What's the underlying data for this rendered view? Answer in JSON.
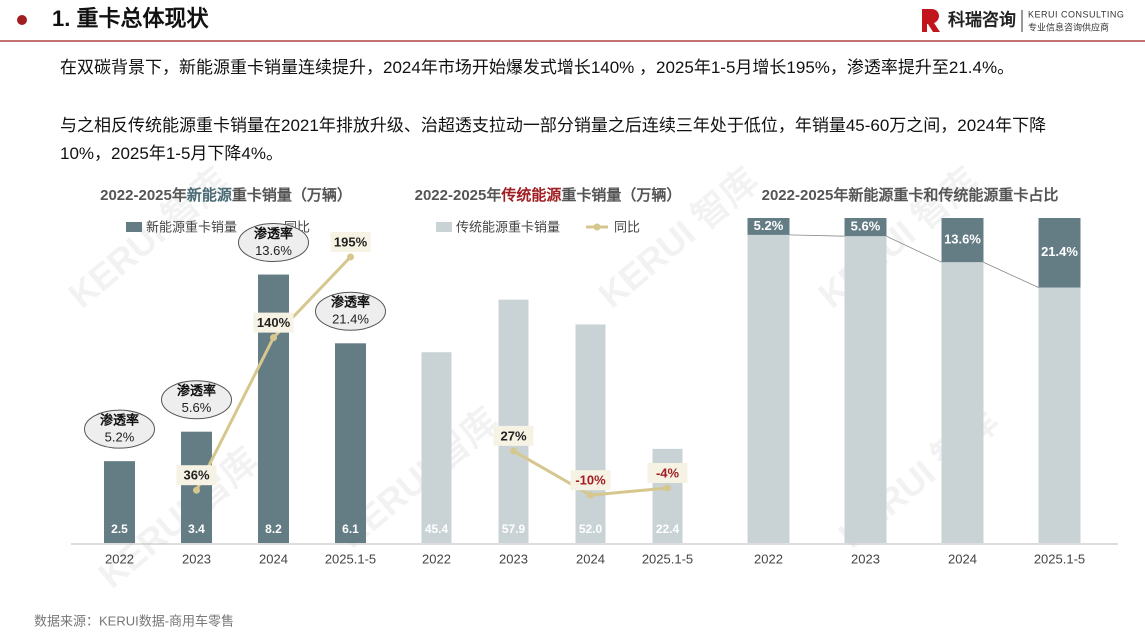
{
  "header": {
    "title": "1. 重卡总体现状",
    "brand": "科瑞咨询",
    "brand_en": "KERUI CONSULTING",
    "brand_sub": "专业信息咨询供应商"
  },
  "paragraphs": [
    "在双碳背景下，新能源重卡销量连续提升，2024年市场开始爆发式增长140% ，2025年1-5月增长195%，渗透率提升至21.4%。",
    "与之相反传统能源重卡销量在2021年排放升级、治超透支拉动一部分销量之后连续三年处于低位，年销量45-60万之间，2024年下降10%，2025年1-5月下降4%。"
  ],
  "source": "数据来源：KERUI数据-商用车零售",
  "watermark": "KERUI 智库",
  "chart_data": [
    {
      "type": "combo",
      "title": [
        "2022-2025年",
        "新能源",
        "重卡销量（万辆）"
      ],
      "title_highlight": "#4a6a74",
      "categories": [
        "2022",
        "2023",
        "2024",
        "2025.1-5"
      ],
      "series": [
        {
          "name": "新能源重卡销量",
          "color": "#647d85",
          "values": [
            2.5,
            3.4,
            8.2,
            6.1
          ]
        },
        {
          "name": "同比",
          "color": "#d6c78e",
          "axis": "y2",
          "values": [
            null,
            36,
            140,
            195
          ],
          "value_labels": [
            null,
            "36%",
            "140%",
            "195%"
          ]
        }
      ],
      "penetration": {
        "name": "渗透率",
        "values": [
          5.2,
          5.6,
          13.6,
          21.4
        ],
        "value_labels": [
          "5.2%",
          "5.6%",
          "13.6%",
          "21.4%"
        ]
      },
      "ylim": [
        0,
        9.5
      ],
      "y2lim": [
        0,
        212
      ]
    },
    {
      "type": "combo",
      "title": [
        "2022-2025年",
        "传统能源",
        "重卡销量（万辆）"
      ],
      "title_highlight": "#a01e22",
      "categories": [
        "2022",
        "2023",
        "2024",
        "2025.1-5"
      ],
      "series": [
        {
          "name": "传统能源重卡销量",
          "color": "#c9d3d6",
          "values": [
            45.4,
            57.9,
            52.0,
            22.4
          ],
          "value_labels": [
            "45.4",
            "57.9",
            "52.0",
            "22.4"
          ]
        },
        {
          "name": "同比",
          "color": "#d6c78e",
          "axis": "y2",
          "values": [
            null,
            27,
            -10,
            -4
          ],
          "value_labels": [
            null,
            "27%",
            "-10%",
            "-4%"
          ]
        }
      ],
      "ylim": [
        0,
        74
      ],
      "y2lim": [
        -50,
        210
      ]
    },
    {
      "type": "stacked",
      "title": [
        "2022-2025年新能源重卡和传统能源重卡占比"
      ],
      "categories": [
        "2022",
        "2023",
        "2024",
        "2025.1-5"
      ],
      "series": [
        {
          "color": "#c9d3d6",
          "values": [
            94.8,
            94.4,
            86.4,
            78.6
          ]
        },
        {
          "color": "#647d85",
          "values": [
            5.2,
            5.6,
            13.6,
            21.4
          ],
          "value_labels": [
            "5.2%",
            "5.6%",
            "13.6%",
            "21.4%"
          ]
        }
      ],
      "ylim": [
        0,
        100
      ]
    }
  ]
}
